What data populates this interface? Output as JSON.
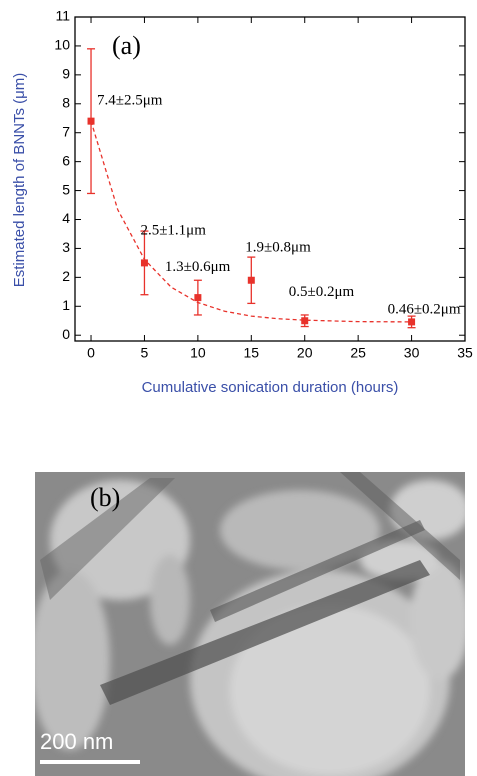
{
  "chart_data": {
    "type": "scatter",
    "panel_label": "(a)",
    "x_label": "Cumulative sonication duration (hours)",
    "y_label": "Estimated length of BNNTs (μm)",
    "x": [
      0,
      5,
      10,
      15,
      20,
      30
    ],
    "values": [
      7.4,
      2.5,
      1.3,
      1.9,
      0.5,
      0.46
    ],
    "errors": [
      2.5,
      1.1,
      0.6,
      0.8,
      0.2,
      0.2
    ],
    "value_labels": [
      "7.4±2.5μm",
      "2.5±1.1μm",
      "1.3±0.6μm",
      "1.9±0.8μm",
      "0.5±0.2μm",
      "0.46±0.2μm"
    ],
    "color": "#e8322b",
    "fit": {
      "x": [
        0,
        2.5,
        5,
        7.5,
        10,
        12.5,
        15,
        17.5,
        20,
        25,
        30
      ],
      "y": [
        7.4,
        4.34,
        2.62,
        1.66,
        1.13,
        0.83,
        0.66,
        0.57,
        0.52,
        0.47,
        0.46
      ]
    },
    "xlim": [
      -1.5,
      35
    ],
    "ylim": [
      -0.2,
      11
    ],
    "xticks": [
      0,
      5,
      10,
      15,
      20,
      25,
      30,
      35
    ],
    "yticks": [
      0,
      1,
      2,
      3,
      4,
      5,
      6,
      7,
      8,
      9,
      10,
      11
    ]
  },
  "image": {
    "label": "(b)",
    "scale_bar": "200 nm"
  }
}
